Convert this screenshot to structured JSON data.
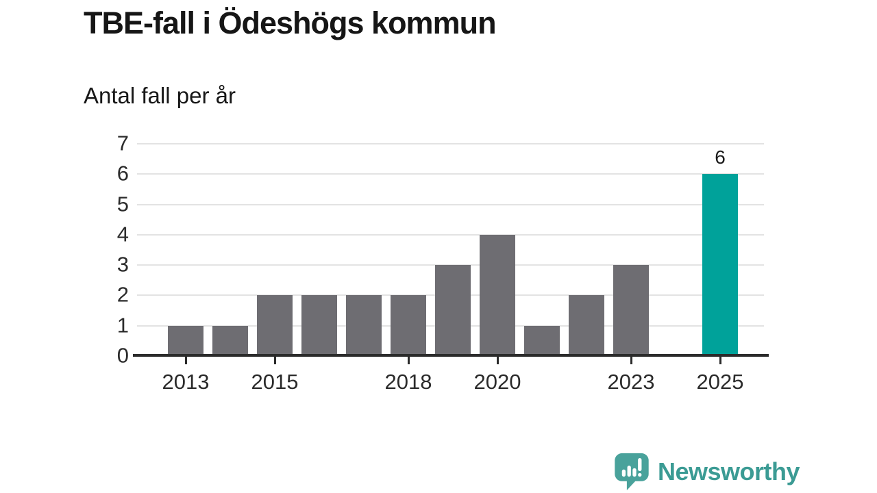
{
  "header": {
    "title": "TBE-fall i Ödeshögs kommun",
    "subtitle": "Antal fall per år"
  },
  "branding": {
    "logo_text": "Newsworthy"
  },
  "colors": {
    "bar": "#6e6d72",
    "highlight": "#00a29a",
    "grid": "#e3e3e3",
    "axis": "#2b2b2b",
    "title_text": "#161616",
    "logo": "#3b9b94",
    "logo_bubble": "#49a29b"
  },
  "chart_data": {
    "type": "bar",
    "title": "TBE-fall i Ödeshögs kommun",
    "xlabel": "",
    "ylabel": "Antal fall per år",
    "categories": [
      "2013",
      "2014",
      "2015",
      "2016",
      "2017",
      "2018",
      "2019",
      "2020",
      "2021",
      "2022",
      "2023",
      "2024",
      "2025"
    ],
    "values": [
      1,
      1,
      2,
      2,
      2,
      2,
      3,
      4,
      1,
      2,
      3,
      0,
      6
    ],
    "highlight_category": "2025",
    "annotations": [
      {
        "category": "2025",
        "text": "6"
      }
    ],
    "x_tick_labels": [
      "2013",
      "2015",
      "2018",
      "2020",
      "2023",
      "2025"
    ],
    "y_ticks": [
      0,
      1,
      2,
      3,
      4,
      5,
      6,
      7
    ],
    "ylim": [
      0,
      7
    ],
    "grid": true,
    "legend_position": "none"
  }
}
